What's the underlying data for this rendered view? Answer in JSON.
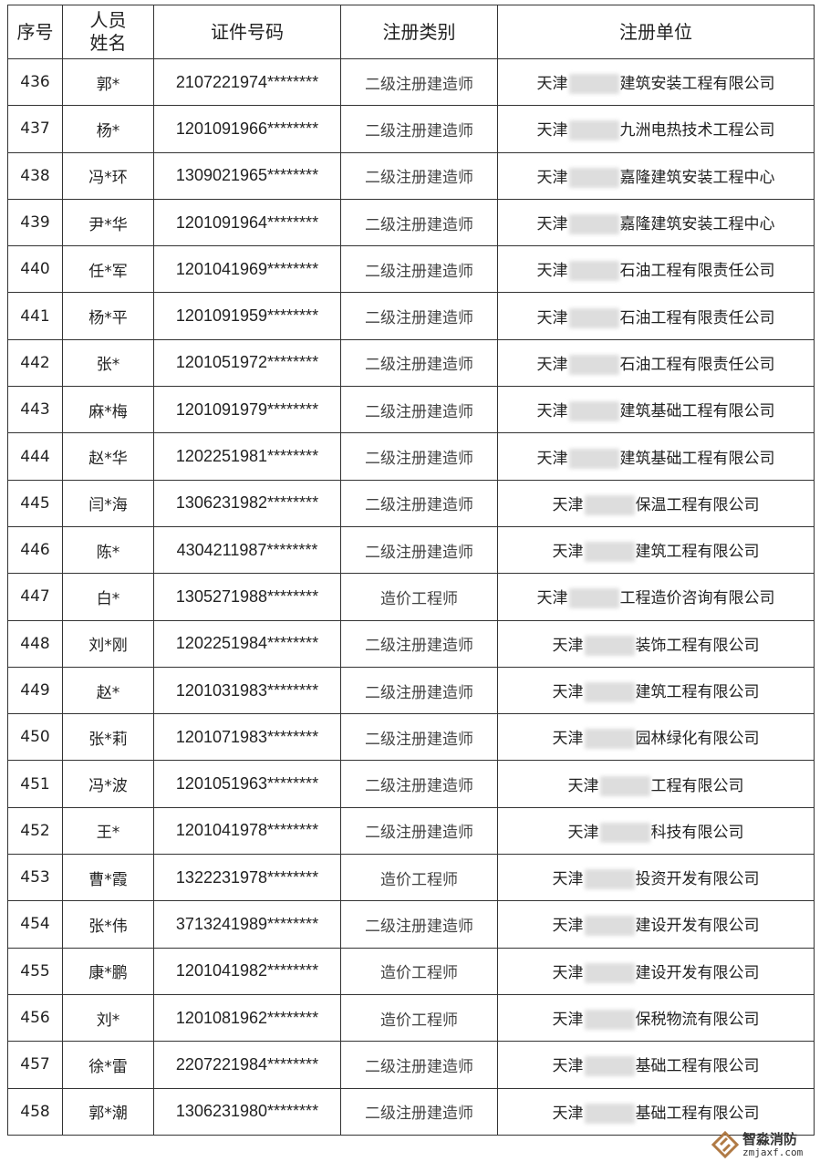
{
  "headers": {
    "no": "序号",
    "name": "人员\n姓名",
    "id": "证件号码",
    "type": "注册类别",
    "unit": "注册单位"
  },
  "rows": [
    {
      "no": "436",
      "name": "郭*",
      "id": "2107221974********",
      "type": "二级注册建造师",
      "pre": "天津",
      "suf": "建筑安装工程有限公司"
    },
    {
      "no": "437",
      "name": "杨*",
      "id": "1201091966********",
      "type": "二级注册建造师",
      "pre": "天津",
      "suf": "九洲电热技术工程公司"
    },
    {
      "no": "438",
      "name": "冯*环",
      "id": "1309021965********",
      "type": "二级注册建造师",
      "pre": "天津",
      "suf": "嘉隆建筑安装工程中心"
    },
    {
      "no": "439",
      "name": "尹*华",
      "id": "1201091964********",
      "type": "二级注册建造师",
      "pre": "天津",
      "suf": "嘉隆建筑安装工程中心"
    },
    {
      "no": "440",
      "name": "任*军",
      "id": "1201041969********",
      "type": "二级注册建造师",
      "pre": "天津",
      "suf": "石油工程有限责任公司"
    },
    {
      "no": "441",
      "name": "杨*平",
      "id": "1201091959********",
      "type": "二级注册建造师",
      "pre": "天津",
      "suf": "石油工程有限责任公司"
    },
    {
      "no": "442",
      "name": "张*",
      "id": "1201051972********",
      "type": "二级注册建造师",
      "pre": "天津",
      "suf": "石油工程有限责任公司"
    },
    {
      "no": "443",
      "name": "麻*梅",
      "id": "1201091979********",
      "type": "二级注册建造师",
      "pre": "天津",
      "suf": "建筑基础工程有限公司"
    },
    {
      "no": "444",
      "name": "赵*华",
      "id": "1202251981********",
      "type": "二级注册建造师",
      "pre": "天津",
      "suf": "建筑基础工程有限公司"
    },
    {
      "no": "445",
      "name": "闫*海",
      "id": "1306231982********",
      "type": "二级注册建造师",
      "pre": "天津",
      "suf": "保温工程有限公司"
    },
    {
      "no": "446",
      "name": "陈*",
      "id": "4304211987********",
      "type": "二级注册建造师",
      "pre": "天津",
      "suf": "建筑工程有限公司"
    },
    {
      "no": "447",
      "name": "白*",
      "id": "1305271988********",
      "type": "造价工程师",
      "pre": "天津",
      "suf": "工程造价咨询有限公司"
    },
    {
      "no": "448",
      "name": "刘*刚",
      "id": "1202251984********",
      "type": "二级注册建造师",
      "pre": "天津",
      "suf": "装饰工程有限公司"
    },
    {
      "no": "449",
      "name": "赵*",
      "id": "1201031983********",
      "type": "二级注册建造师",
      "pre": "天津",
      "suf": "建筑工程有限公司"
    },
    {
      "no": "450",
      "name": "张*莉",
      "id": "1201071983********",
      "type": "二级注册建造师",
      "pre": "天津",
      "suf": "园林绿化有限公司"
    },
    {
      "no": "451",
      "name": "冯*波",
      "id": "1201051963********",
      "type": "二级注册建造师",
      "pre": "天津",
      "suf": "工程有限公司"
    },
    {
      "no": "452",
      "name": "王*",
      "id": "1201041978********",
      "type": "二级注册建造师",
      "pre": "天津",
      "suf": "科技有限公司"
    },
    {
      "no": "453",
      "name": "曹*霞",
      "id": "1322231978********",
      "type": "造价工程师",
      "pre": "天津",
      "suf": "投资开发有限公司"
    },
    {
      "no": "454",
      "name": "张*伟",
      "id": "3713241989********",
      "type": "二级注册建造师",
      "pre": "天津",
      "suf": "建设开发有限公司"
    },
    {
      "no": "455",
      "name": "康*鹏",
      "id": "1201041982********",
      "type": "造价工程师",
      "pre": "天津",
      "suf": "建设开发有限公司"
    },
    {
      "no": "456",
      "name": "刘*",
      "id": "1201081962********",
      "type": "造价工程师",
      "pre": "天津",
      "suf": "保税物流有限公司"
    },
    {
      "no": "457",
      "name": "徐*雷",
      "id": "2207221984********",
      "type": "二级注册建造师",
      "pre": "天津",
      "suf": "基础工程有限公司"
    },
    {
      "no": "458",
      "name": "郭*潮",
      "id": "1306231980********",
      "type": "二级注册建造师",
      "pre": "天津",
      "suf": "基础工程有限公司"
    }
  ],
  "watermark": {
    "name": "智淼消防",
    "url": "zmjaxf.com"
  }
}
